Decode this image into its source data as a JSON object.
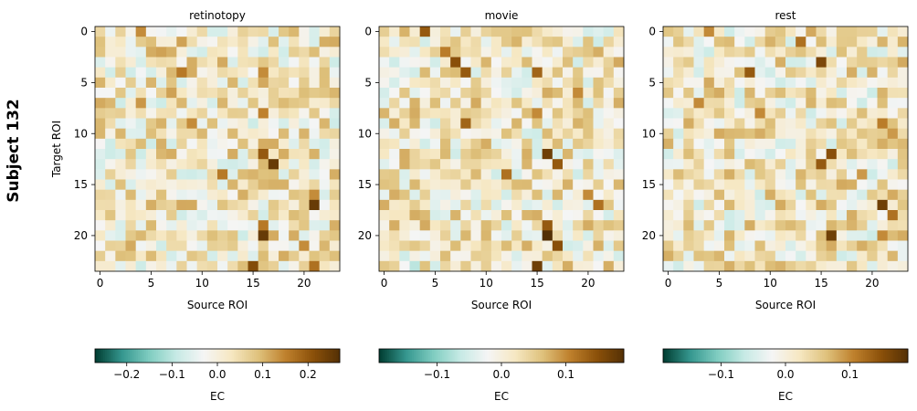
{
  "figure": {
    "row_label": "Subject 132",
    "colormap": [
      "#003c30",
      "#35978f",
      "#80cdc1",
      "#c7eae5",
      "#f5f5f5",
      "#f6e8c3",
      "#dfc27d",
      "#bf812d",
      "#8c510a",
      "#543005"
    ]
  },
  "chart_data": [
    {
      "type": "heatmap",
      "title": "retinotopy",
      "xlabel": "Source ROI",
      "ylabel": "Target ROI",
      "x_ticks": [
        0,
        5,
        10,
        15,
        20
      ],
      "y_ticks": [
        0,
        5,
        10,
        15,
        20
      ],
      "n_rois": 24,
      "vlim": [
        -0.27,
        0.27
      ],
      "colorbar": {
        "label": "EC",
        "ticks": [
          -0.2,
          -0.1,
          0.0,
          0.1,
          0.2
        ],
        "tick_labels": [
          "−0.2",
          "−0.1",
          "0.0",
          "0.1",
          "0.2"
        ]
      },
      "strong_connections": [
        {
          "target": 0,
          "source": 4,
          "value": 0.14
        },
        {
          "target": 0,
          "source": 11,
          "value": -0.07
        },
        {
          "target": 1,
          "source": 8,
          "value": 0.12
        },
        {
          "target": 2,
          "source": 6,
          "value": 0.12
        },
        {
          "target": 4,
          "source": 8,
          "value": 0.16
        },
        {
          "target": 4,
          "source": 16,
          "value": 0.14
        },
        {
          "target": 6,
          "source": 7,
          "value": 0.12
        },
        {
          "target": 7,
          "source": 4,
          "value": 0.13
        },
        {
          "target": 8,
          "source": 16,
          "value": 0.15
        },
        {
          "target": 9,
          "source": 9,
          "value": 0.14
        },
        {
          "target": 11,
          "source": 5,
          "value": -0.08
        },
        {
          "target": 12,
          "source": 16,
          "value": 0.2
        },
        {
          "target": 13,
          "source": 17,
          "value": 0.25
        },
        {
          "target": 14,
          "source": 12,
          "value": 0.16
        },
        {
          "target": 16,
          "source": 21,
          "value": 0.14
        },
        {
          "target": 17,
          "source": 21,
          "value": 0.25
        },
        {
          "target": 19,
          "source": 16,
          "value": 0.16
        },
        {
          "target": 20,
          "source": 16,
          "value": 0.25
        },
        {
          "target": 21,
          "source": 20,
          "value": 0.14
        },
        {
          "target": 23,
          "source": 15,
          "value": 0.22
        },
        {
          "target": 23,
          "source": 21,
          "value": 0.17
        }
      ]
    },
    {
      "type": "heatmap",
      "title": "movie",
      "xlabel": "Source ROI",
      "ylabel": "",
      "x_ticks": [
        0,
        5,
        10,
        15,
        20
      ],
      "y_ticks": [
        0,
        5,
        10,
        15,
        20
      ],
      "n_rois": 24,
      "vlim": [
        -0.19,
        0.19
      ],
      "colorbar": {
        "label": "EC",
        "ticks": [
          -0.1,
          0.0,
          0.1
        ],
        "tick_labels": [
          "−0.1",
          "0.0",
          "0.1"
        ]
      },
      "strong_connections": [
        {
          "target": 0,
          "source": 4,
          "value": 0.14
        },
        {
          "target": 2,
          "source": 6,
          "value": 0.11
        },
        {
          "target": 3,
          "source": 7,
          "value": 0.15
        },
        {
          "target": 4,
          "source": 8,
          "value": 0.14
        },
        {
          "target": 4,
          "source": 15,
          "value": 0.13
        },
        {
          "target": 6,
          "source": 19,
          "value": 0.1
        },
        {
          "target": 8,
          "source": 15,
          "value": 0.1
        },
        {
          "target": 9,
          "source": 8,
          "value": 0.13
        },
        {
          "target": 12,
          "source": 16,
          "value": 0.17
        },
        {
          "target": 13,
          "source": 17,
          "value": 0.14
        },
        {
          "target": 14,
          "source": 12,
          "value": 0.12
        },
        {
          "target": 16,
          "source": 20,
          "value": 0.1
        },
        {
          "target": 17,
          "source": 21,
          "value": 0.12
        },
        {
          "target": 19,
          "source": 16,
          "value": 0.14
        },
        {
          "target": 20,
          "source": 16,
          "value": 0.19
        },
        {
          "target": 21,
          "source": 17,
          "value": 0.15
        },
        {
          "target": 23,
          "source": 15,
          "value": 0.17
        },
        {
          "target": 23,
          "source": 3,
          "value": -0.07
        }
      ]
    },
    {
      "type": "heatmap",
      "title": "rest",
      "xlabel": "Source ROI",
      "ylabel": "",
      "x_ticks": [
        0,
        5,
        10,
        15,
        20
      ],
      "y_ticks": [
        0,
        5,
        10,
        15,
        20
      ],
      "n_rois": 24,
      "vlim": [
        -0.19,
        0.19
      ],
      "colorbar": {
        "label": "EC",
        "ticks": [
          -0.1,
          0.0,
          0.1
        ],
        "tick_labels": [
          "−0.1",
          "0.0",
          "0.1"
        ]
      },
      "strong_connections": [
        {
          "target": 0,
          "source": 4,
          "value": 0.1
        },
        {
          "target": 1,
          "source": 13,
          "value": 0.12
        },
        {
          "target": 3,
          "source": 15,
          "value": 0.16
        },
        {
          "target": 4,
          "source": 8,
          "value": 0.14
        },
        {
          "target": 7,
          "source": 3,
          "value": 0.1
        },
        {
          "target": 8,
          "source": 9,
          "value": 0.1
        },
        {
          "target": 9,
          "source": 21,
          "value": 0.11
        },
        {
          "target": 12,
          "source": 16,
          "value": 0.15
        },
        {
          "target": 13,
          "source": 15,
          "value": 0.14
        },
        {
          "target": 14,
          "source": 19,
          "value": 0.09
        },
        {
          "target": 17,
          "source": 21,
          "value": 0.17
        },
        {
          "target": 18,
          "source": 22,
          "value": 0.12
        },
        {
          "target": 20,
          "source": 16,
          "value": 0.17
        },
        {
          "target": 20,
          "source": 21,
          "value": 0.1
        },
        {
          "target": 10,
          "source": 22,
          "value": 0.09
        }
      ]
    }
  ]
}
